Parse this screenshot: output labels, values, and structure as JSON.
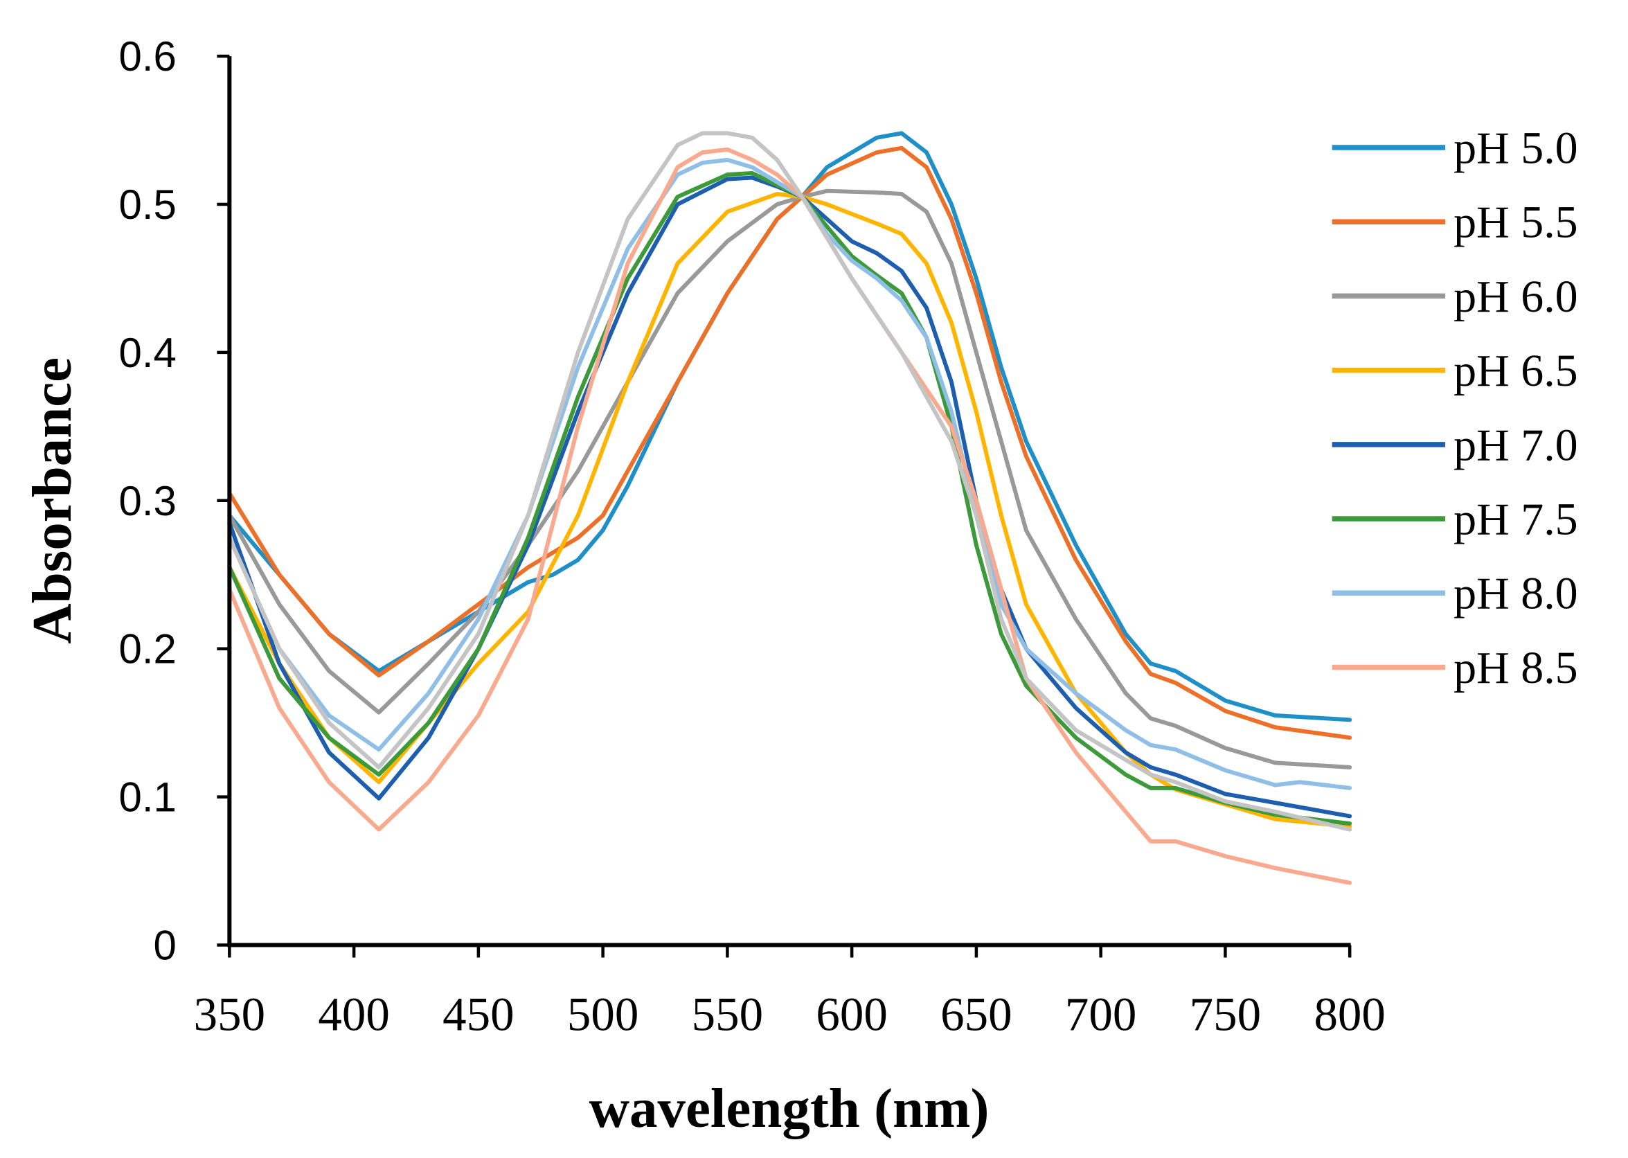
{
  "chart_data": {
    "type": "line",
    "title": "",
    "xlabel": "wavelength (nm)",
    "ylabel": "Absorbance",
    "xlim": [
      350,
      800
    ],
    "ylim": [
      0,
      0.6
    ],
    "xticks": [
      "350",
      "400",
      "450",
      "500",
      "550",
      "600",
      "650",
      "700",
      "750",
      "800"
    ],
    "yticks": [
      "0",
      "0.1",
      "0.2",
      "0.3",
      "0.4",
      "0.5",
      "0.6"
    ],
    "xtick_values": [
      350,
      400,
      450,
      500,
      550,
      600,
      650,
      700,
      750,
      800
    ],
    "ytick_values": [
      0,
      0.1,
      0.2,
      0.3,
      0.4,
      0.5,
      0.6
    ],
    "grid": false,
    "legend_position": "right",
    "series": [
      {
        "name": "pH 5.0",
        "color": "#1f8fc7",
        "x": [
          350,
          370,
          390,
          410,
          430,
          450,
          470,
          480,
          490,
          500,
          510,
          530,
          550,
          570,
          580,
          590,
          610,
          620,
          630,
          640,
          650,
          660,
          670,
          690,
          710,
          720,
          730,
          750,
          770,
          800
        ],
        "y": [
          0.29,
          0.25,
          0.21,
          0.185,
          0.205,
          0.225,
          0.245,
          0.25,
          0.26,
          0.28,
          0.31,
          0.38,
          0.44,
          0.49,
          0.505,
          0.525,
          0.545,
          0.548,
          0.535,
          0.5,
          0.45,
          0.39,
          0.34,
          0.27,
          0.21,
          0.19,
          0.185,
          0.165,
          0.155,
          0.152
        ]
      },
      {
        "name": "pH 5.5",
        "color": "#ed7028",
        "x": [
          350,
          370,
          390,
          410,
          430,
          450,
          470,
          490,
          500,
          510,
          530,
          550,
          570,
          580,
          590,
          610,
          620,
          630,
          640,
          650,
          660,
          670,
          690,
          710,
          720,
          730,
          750,
          770,
          800
        ],
        "y": [
          0.305,
          0.25,
          0.21,
          0.182,
          0.205,
          0.23,
          0.255,
          0.275,
          0.29,
          0.32,
          0.38,
          0.44,
          0.49,
          0.505,
          0.52,
          0.535,
          0.538,
          0.525,
          0.49,
          0.44,
          0.38,
          0.33,
          0.26,
          0.205,
          0.183,
          0.177,
          0.158,
          0.147,
          0.14
        ]
      },
      {
        "name": "pH 6.0",
        "color": "#999999",
        "x": [
          350,
          370,
          390,
          410,
          430,
          450,
          470,
          490,
          510,
          530,
          550,
          570,
          580,
          590,
          610,
          620,
          630,
          640,
          650,
          660,
          670,
          690,
          710,
          720,
          730,
          750,
          770,
          800
        ],
        "y": [
          0.29,
          0.23,
          0.185,
          0.157,
          0.19,
          0.225,
          0.27,
          0.32,
          0.38,
          0.44,
          0.475,
          0.5,
          0.505,
          0.509,
          0.508,
          0.507,
          0.495,
          0.46,
          0.4,
          0.34,
          0.28,
          0.22,
          0.17,
          0.153,
          0.148,
          0.133,
          0.123,
          0.12
        ]
      },
      {
        "name": "pH 6.5",
        "color": "#ffb400",
        "x": [
          350,
          370,
          390,
          410,
          430,
          450,
          470,
          490,
          510,
          530,
          550,
          570,
          580,
          590,
          610,
          620,
          630,
          640,
          650,
          660,
          670,
          690,
          710,
          720,
          730,
          750,
          770,
          800
        ],
        "y": [
          0.255,
          0.19,
          0.14,
          0.11,
          0.15,
          0.19,
          0.225,
          0.29,
          0.38,
          0.46,
          0.495,
          0.507,
          0.505,
          0.5,
          0.487,
          0.48,
          0.46,
          0.42,
          0.36,
          0.29,
          0.23,
          0.17,
          0.13,
          0.115,
          0.105,
          0.095,
          0.085,
          0.08
        ]
      },
      {
        "name": "pH 7.0",
        "color": "#1d5fae",
        "x": [
          350,
          370,
          390,
          410,
          430,
          450,
          470,
          490,
          510,
          530,
          550,
          560,
          570,
          580,
          590,
          600,
          610,
          620,
          630,
          640,
          650,
          660,
          670,
          690,
          710,
          720,
          730,
          750,
          770,
          800
        ],
        "y": [
          0.285,
          0.19,
          0.13,
          0.099,
          0.14,
          0.2,
          0.27,
          0.36,
          0.44,
          0.5,
          0.517,
          0.518,
          0.512,
          0.505,
          0.49,
          0.475,
          0.467,
          0.455,
          0.43,
          0.38,
          0.3,
          0.24,
          0.2,
          0.16,
          0.13,
          0.12,
          0.115,
          0.102,
          0.096,
          0.087
        ]
      },
      {
        "name": "pH 7.5",
        "color": "#3c9a3a",
        "x": [
          350,
          370,
          390,
          410,
          430,
          450,
          470,
          490,
          510,
          530,
          550,
          560,
          570,
          580,
          590,
          600,
          610,
          620,
          630,
          640,
          650,
          660,
          670,
          690,
          710,
          720,
          730,
          750,
          770,
          800
        ],
        "y": [
          0.255,
          0.18,
          0.14,
          0.115,
          0.15,
          0.2,
          0.275,
          0.37,
          0.45,
          0.505,
          0.52,
          0.521,
          0.513,
          0.505,
          0.485,
          0.465,
          0.452,
          0.44,
          0.41,
          0.35,
          0.27,
          0.21,
          0.175,
          0.14,
          0.115,
          0.106,
          0.106,
          0.096,
          0.088,
          0.082
        ]
      },
      {
        "name": "pH 8.0",
        "color": "#8fbfe6",
        "x": [
          350,
          370,
          390,
          410,
          430,
          450,
          470,
          490,
          510,
          530,
          540,
          550,
          560,
          570,
          580,
          590,
          600,
          610,
          620,
          630,
          640,
          650,
          660,
          670,
          690,
          710,
          720,
          730,
          750,
          770,
          780,
          800
        ],
        "y": [
          0.275,
          0.2,
          0.155,
          0.132,
          0.17,
          0.22,
          0.29,
          0.39,
          0.47,
          0.52,
          0.528,
          0.53,
          0.525,
          0.515,
          0.505,
          0.48,
          0.462,
          0.45,
          0.435,
          0.41,
          0.36,
          0.29,
          0.23,
          0.2,
          0.17,
          0.145,
          0.135,
          0.132,
          0.118,
          0.108,
          0.11,
          0.106
        ]
      },
      {
        "name": "pH 8.5",
        "color": "#f9a98e",
        "x": [
          350,
          370,
          390,
          410,
          430,
          450,
          470,
          490,
          510,
          530,
          540,
          550,
          560,
          570,
          580,
          600,
          620,
          640,
          650,
          660,
          670,
          690,
          710,
          720,
          730,
          750,
          770,
          800
        ],
        "y": [
          0.24,
          0.16,
          0.11,
          0.078,
          0.11,
          0.155,
          0.22,
          0.35,
          0.46,
          0.525,
          0.535,
          0.537,
          0.53,
          0.52,
          0.505,
          0.45,
          0.4,
          0.35,
          0.3,
          0.24,
          0.18,
          0.13,
          0.09,
          0.07,
          0.07,
          0.06,
          0.052,
          0.042
        ]
      },
      {
        "name": "",
        "color": "#c4c4c4",
        "x": [
          350,
          370,
          390,
          410,
          430,
          450,
          470,
          490,
          510,
          530,
          540,
          550,
          560,
          570,
          580,
          600,
          620,
          640,
          650,
          660,
          670,
          690,
          710,
          720,
          730,
          750,
          770,
          800
        ],
        "y": [
          0.275,
          0.2,
          0.15,
          0.12,
          0.16,
          0.21,
          0.29,
          0.4,
          0.49,
          0.54,
          0.548,
          0.548,
          0.545,
          0.53,
          0.505,
          0.45,
          0.4,
          0.34,
          0.29,
          0.22,
          0.18,
          0.145,
          0.125,
          0.115,
          0.11,
          0.097,
          0.09,
          0.078
        ]
      }
    ]
  }
}
